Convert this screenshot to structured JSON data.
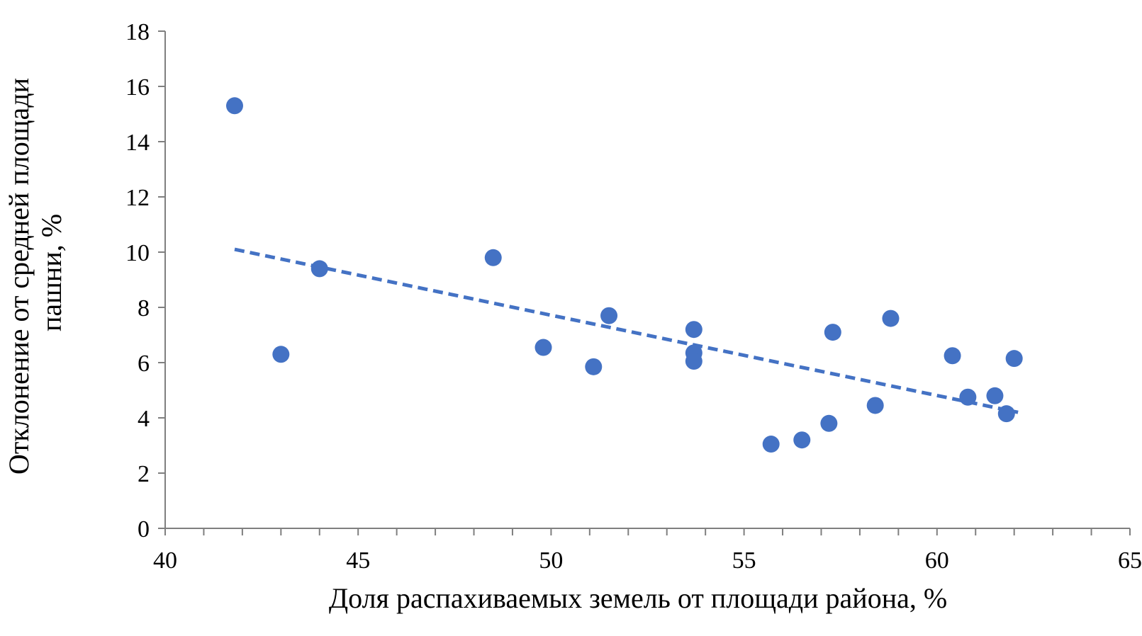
{
  "chart_data": {
    "type": "scatter",
    "xlabel": "Доля распахиваемых земель от площади района, %",
    "ylabel_lines": [
      "Отклонение от средней площади",
      "пашни, %"
    ],
    "xlim": [
      40,
      65
    ],
    "ylim": [
      0,
      18
    ],
    "x_ticks": [
      40,
      45,
      50,
      55,
      60,
      65
    ],
    "y_ticks": [
      0,
      2,
      4,
      6,
      8,
      10,
      12,
      14,
      16,
      18
    ],
    "x_minor_step": 1,
    "grid": false,
    "legend": "none",
    "colors": {
      "points": "#4472C4",
      "trendline": "#4472C4"
    },
    "trendline": {
      "style": "dashed",
      "x": [
        41.8,
        62.1
      ],
      "y": [
        10.1,
        4.2
      ]
    },
    "points": [
      {
        "x": 41.8,
        "y": 15.3
      },
      {
        "x": 43.0,
        "y": 6.3
      },
      {
        "x": 44.0,
        "y": 9.4
      },
      {
        "x": 48.5,
        "y": 9.8
      },
      {
        "x": 49.8,
        "y": 6.55
      },
      {
        "x": 51.1,
        "y": 5.85
      },
      {
        "x": 51.5,
        "y": 7.7
      },
      {
        "x": 53.7,
        "y": 7.2
      },
      {
        "x": 53.7,
        "y": 6.35
      },
      {
        "x": 53.7,
        "y": 6.05
      },
      {
        "x": 55.7,
        "y": 3.05
      },
      {
        "x": 56.5,
        "y": 3.2
      },
      {
        "x": 57.2,
        "y": 3.8
      },
      {
        "x": 57.3,
        "y": 7.1
      },
      {
        "x": 58.4,
        "y": 4.45
      },
      {
        "x": 58.8,
        "y": 7.6
      },
      {
        "x": 60.4,
        "y": 6.25
      },
      {
        "x": 60.8,
        "y": 4.75
      },
      {
        "x": 61.5,
        "y": 4.8
      },
      {
        "x": 61.8,
        "y": 4.15
      },
      {
        "x": 62.0,
        "y": 6.15
      }
    ]
  }
}
